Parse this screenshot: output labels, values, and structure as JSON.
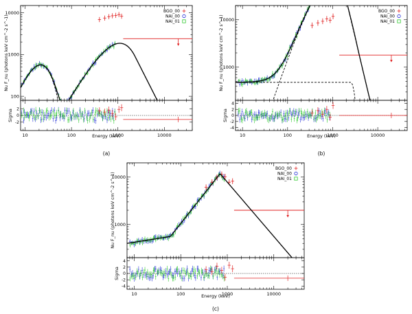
{
  "colors": {
    "bgo": "#e02020",
    "nai0": "#2a35d8",
    "nai1": "#2ec82e",
    "model": "#000000",
    "axis": "#000000"
  },
  "chart_data": [
    {
      "type": "scatter",
      "caption": "(a)",
      "xlabel": "Energy (keV)",
      "ylabel": "Nu F_nu (photons keV cm^-2 s^-1)",
      "reslabel": "Sigma",
      "xlim": [
        8,
        40000
      ],
      "ylim": [
        80,
        15000
      ],
      "reslim": [
        -4.5,
        4.5
      ],
      "xticks": [
        10,
        100,
        1000,
        10000
      ],
      "xtick_labels": [
        "10",
        "100",
        "1000",
        "10000"
      ],
      "yticks": [
        100,
        1000,
        10000
      ],
      "ytick_labels": [
        "100",
        "1000",
        "10000"
      ],
      "resticks": [
        -2,
        0,
        2
      ],
      "restick_labels": [
        "-2",
        "0",
        "2"
      ],
      "legend": [
        {
          "name": "BGO_00",
          "marker": "+",
          "color": "bgo"
        },
        {
          "name": "NAI_00",
          "marker": "o",
          "color": "nai0"
        },
        {
          "name": "NAI_01",
          "marker": "square",
          "color": "nai1"
        }
      ],
      "model": {
        "type": "bb_band",
        "bbT": 5.5,
        "bbA": 6.0,
        "A": 0.01,
        "alpha": -0.05,
        "beta": -4.2,
        "Ep": 1100
      },
      "bgo_points": [
        [
          400,
          6900,
          1.4
        ],
        [
          520,
          7500,
          1.0
        ],
        [
          640,
          8100,
          1.6
        ],
        [
          760,
          8500,
          0.6
        ],
        [
          900,
          8700,
          -0.4
        ],
        [
          1050,
          9100,
          1.8
        ],
        [
          1200,
          8300,
          2.3
        ]
      ],
      "upper_limit": {
        "x1": 1300,
        "x2": 40000,
        "y": 2400,
        "arrow_x": 20000,
        "res": -1.2
      }
    },
    {
      "type": "scatter",
      "caption": "(b)",
      "xlabel": "Energy (keV)",
      "ylabel": "Nu F_nu (photons keV cm^-2 s^-1)",
      "reslabel": "Sigma",
      "xlim": [
        7,
        45000
      ],
      "ylim": [
        200,
        20000
      ],
      "reslim": [
        -5,
        5
      ],
      "xticks": [
        10,
        100,
        1000,
        10000
      ],
      "xtick_labels": [
        "10",
        "100",
        "1000",
        "10000"
      ],
      "yticks": [
        1000,
        10000
      ],
      "ytick_labels": [
        "1000",
        "10000"
      ],
      "resticks": [
        -4,
        -2,
        0,
        2,
        4
      ],
      "restick_labels": [
        "-4",
        "-2",
        "0",
        "2",
        "4"
      ],
      "legend": [
        {
          "name": "BGO_00",
          "marker": "+",
          "color": "bgo"
        },
        {
          "name": "NAI_00",
          "marker": "o",
          "color": "nai0"
        },
        {
          "name": "NAI_01",
          "marker": "square",
          "color": "nai1"
        }
      ],
      "model": {
        "type": "const_band",
        "C": 480,
        "A": 0.2,
        "alpha": 0.85,
        "beta": -6,
        "Ep": 950,
        "cutE": 2500
      },
      "bgo_points": [
        [
          350,
          7600,
          0.8
        ],
        [
          470,
          8600,
          1.6
        ],
        [
          600,
          9300,
          0.4
        ],
        [
          740,
          10400,
          2.0
        ],
        [
          880,
          9800,
          -0.6
        ],
        [
          1020,
          11800,
          3.3
        ]
      ],
      "upper_limit": {
        "x1": 1400,
        "x2": 45000,
        "y": 1800,
        "arrow_x": 20000,
        "res": 0.0
      }
    },
    {
      "type": "scatter",
      "caption": "(c)",
      "xlabel": "Energy (keV)",
      "ylabel": "Nu F_nu (photons keV cm^-2 s^-1)",
      "reslabel": "Sigma",
      "xlim": [
        7,
        45000
      ],
      "ylim": [
        200,
        20000
      ],
      "reslim": [
        -5,
        5
      ],
      "xticks": [
        10,
        100,
        1000,
        10000
      ],
      "xtick_labels": [
        "10",
        "100",
        "1000",
        "10000"
      ],
      "yticks": [
        1000,
        10000
      ],
      "ytick_labels": [
        "1000",
        "10000"
      ],
      "resticks": [
        -4,
        -2,
        0,
        2,
        4
      ],
      "restick_labels": [
        "-4",
        "-2",
        "0",
        "2",
        "4"
      ],
      "legend": [
        {
          "name": "BGO_00",
          "marker": "+",
          "color": "bgo"
        },
        {
          "name": "NAI_00",
          "marker": "o",
          "color": "nai0"
        },
        {
          "name": "NAI_01",
          "marker": "square",
          "color": "nai1"
        }
      ],
      "model": {
        "type": "broken_pl",
        "points": [
          [
            7,
            400
          ],
          [
            60,
            560
          ],
          [
            700,
            11800
          ],
          [
            45000,
            100
          ]
        ]
      },
      "bgo_points": [
        [
          350,
          6100,
          1.2
        ],
        [
          470,
          7800,
          0.6
        ],
        [
          600,
          9900,
          2.3
        ],
        [
          760,
          11400,
          1.0
        ],
        [
          900,
          10200,
          -1.2
        ],
        [
          1100,
          7800,
          2.6
        ],
        [
          1300,
          8200,
          1.5
        ]
      ],
      "upper_limit": {
        "x1": 1400,
        "x2": 45000,
        "y": 2000,
        "arrow_x": 20000,
        "res": -1.5
      }
    }
  ]
}
